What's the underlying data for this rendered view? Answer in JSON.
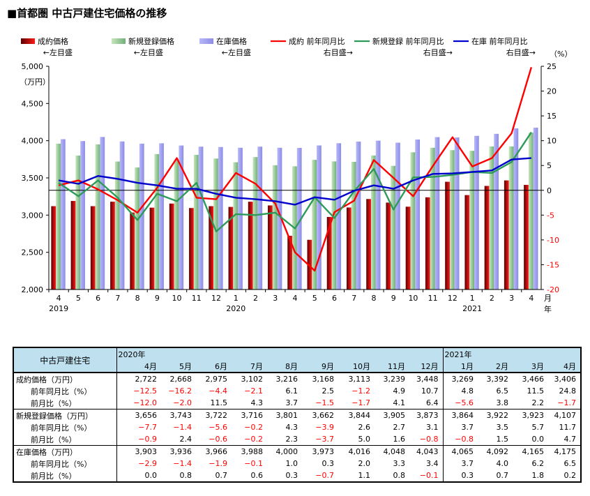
{
  "title": "■首都圏 中古戸建住宅価格の推移",
  "legend": [
    {
      "name": "成約価格",
      "sub": "←左目盛",
      "kind": "bar",
      "color": "#d40000"
    },
    {
      "name": "新規登録価格",
      "sub": "←左目盛",
      "kind": "bar",
      "color": "#9bc98e"
    },
    {
      "name": "在庫価格",
      "sub": "←左目盛",
      "kind": "bar",
      "color": "#aaaaf2"
    },
    {
      "name": "成約 前年同月比",
      "sub": "右目盛→",
      "kind": "line",
      "color": "#ff0000"
    },
    {
      "name": "新規登録 前年同月比",
      "sub": "右目盛→",
      "kind": "line",
      "color": "#2e9a5a"
    },
    {
      "name": "在庫 前年同月比",
      "sub": "右目盛→",
      "kind": "line",
      "color": "#0000cc"
    }
  ],
  "chart_data": {
    "type": "bar",
    "categories": [
      "4",
      "5",
      "6",
      "7",
      "8",
      "9",
      "10",
      "11",
      "12",
      "1",
      "2",
      "3",
      "4",
      "5",
      "6",
      "7",
      "8",
      "9",
      "10",
      "11",
      "12",
      "1",
      "2",
      "3",
      "4"
    ],
    "year_labels": [
      {
        "index": 0,
        "text": "2019"
      },
      {
        "index": 9,
        "text": "2020"
      },
      {
        "index": 21,
        "text": "2021"
      }
    ],
    "x_unit": [
      "月",
      "年"
    ],
    "left_axis": {
      "label": "（万円）",
      "min": 2000,
      "max": 5000,
      "ticks": [
        2000,
        2500,
        3000,
        3500,
        4000,
        4500,
        5000
      ],
      "tick_labels": [
        "2,000",
        "2,500",
        "3,000",
        "3,500",
        "4,000",
        "4,500",
        "5,000"
      ]
    },
    "right_axis": {
      "label": "（%）",
      "min": -20,
      "max": 25,
      "ticks": [
        -20,
        -15,
        -10,
        -5,
        0,
        5,
        10,
        15,
        20,
        25
      ],
      "tick_labels": [
        "-20",
        "-15",
        "-10",
        "-5",
        "0",
        "5",
        "10",
        "15",
        "20",
        "25"
      ]
    },
    "bar_series": [
      {
        "name": "成約価格",
        "color": "#d40000",
        "values": [
          3120,
          3190,
          3120,
          3180,
          3035,
          3100,
          3155,
          3095,
          3120,
          3110,
          3180,
          3130,
          2722,
          2668,
          2975,
          3102,
          3216,
          3168,
          3113,
          3239,
          3448,
          3269,
          3392,
          3466,
          3406
        ]
      },
      {
        "name": "新規登録価格",
        "color": "#9bc98e",
        "values": [
          3960,
          3800,
          3950,
          3720,
          3640,
          3820,
          3740,
          3810,
          3760,
          3710,
          3780,
          3670,
          3656,
          3743,
          3722,
          3716,
          3801,
          3662,
          3844,
          3905,
          3873,
          3864,
          3922,
          3923,
          4107
        ]
      },
      {
        "name": "在庫価格",
        "color": "#aaaaf2",
        "values": [
          4020,
          3995,
          4050,
          3990,
          3960,
          3965,
          3935,
          3920,
          3915,
          3905,
          3920,
          3905,
          3903,
          3936,
          3966,
          3988,
          4000,
          3973,
          4016,
          4048,
          4043,
          4065,
          4092,
          4165,
          4175
        ]
      }
    ],
    "line_series": [
      {
        "name": "成約 前年同月比",
        "color": "#ff0000",
        "values": [
          1.0,
          2.0,
          0.2,
          -2.0,
          -4.5,
          0.5,
          6.5,
          -1.5,
          -1.8,
          3.5,
          1.3,
          -2.7,
          -12.5,
          -16.2,
          -4.4,
          -2.1,
          6.1,
          2.5,
          -1.2,
          4.9,
          10.7,
          4.8,
          6.5,
          11.5,
          24.8
        ]
      },
      {
        "name": "新規登録 前年同月比",
        "color": "#2e9a5a",
        "values": [
          1.5,
          -1.2,
          2.0,
          -1.5,
          -6.0,
          -0.7,
          -2.2,
          1.5,
          -8.3,
          -4.8,
          -5.0,
          -4.5,
          -7.7,
          -1.4,
          -5.6,
          -0.2,
          4.3,
          -3.9,
          2.6,
          2.7,
          3.1,
          3.7,
          3.5,
          5.7,
          11.7
        ]
      },
      {
        "name": "在庫 前年同月比",
        "color": "#0000cc",
        "values": [
          2.0,
          1.3,
          2.9,
          2.3,
          1.5,
          1.0,
          0.3,
          0.3,
          -0.7,
          -1.5,
          -1.8,
          -2.2,
          -2.9,
          -1.4,
          -1.9,
          -0.1,
          1.0,
          0.3,
          2.0,
          3.3,
          3.4,
          3.7,
          4.0,
          6.2,
          6.5
        ]
      }
    ],
    "grid": false,
    "legend_position": "top"
  },
  "table": {
    "row_header": "中古戸建住宅",
    "years": [
      {
        "label": "2020年",
        "span": 9
      },
      {
        "label": "2021年",
        "span": 4
      }
    ],
    "months": [
      "4月",
      "5月",
      "6月",
      "7月",
      "8月",
      "9月",
      "10月",
      "11月",
      "12月",
      "1月",
      "2月",
      "3月",
      "4月"
    ],
    "groups": [
      {
        "rows": [
          {
            "label": "成約価格（万円）",
            "indent": false,
            "values": [
              "2,722",
              "2,668",
              "2,975",
              "3,102",
              "3,216",
              "3,168",
              "3,113",
              "3,239",
              "3,448",
              "3,269",
              "3,392",
              "3,466",
              "3,406"
            ]
          },
          {
            "label": "前年同月比（%）",
            "indent": true,
            "values": [
              "−12.5",
              "−16.2",
              "−4.4",
              "−2.1",
              "6.1",
              "2.5",
              "−1.2",
              "4.9",
              "10.7",
              "4.8",
              "6.5",
              "11.5",
              "24.8"
            ]
          },
          {
            "label": "前月比（%）",
            "indent": true,
            "values": [
              "−12.0",
              "−2.0",
              "11.5",
              "4.3",
              "3.7",
              "−1.5",
              "−1.7",
              "4.1",
              "6.4",
              "−5.6",
              "3.8",
              "2.2",
              "−1.7"
            ]
          }
        ]
      },
      {
        "rows": [
          {
            "label": "新規登録価格（万円）",
            "indent": false,
            "values": [
              "3,656",
              "3,743",
              "3,722",
              "3,716",
              "3,801",
              "3,662",
              "3,844",
              "3,905",
              "3,873",
              "3,864",
              "3,922",
              "3,923",
              "4,107"
            ]
          },
          {
            "label": "前年同月比（%）",
            "indent": true,
            "values": [
              "−7.7",
              "−1.4",
              "−5.6",
              "−0.2",
              "4.3",
              "−3.9",
              "2.6",
              "2.7",
              "3.1",
              "3.7",
              "3.5",
              "5.7",
              "11.7"
            ]
          },
          {
            "label": "前月比（%）",
            "indent": true,
            "values": [
              "−0.9",
              "2.4",
              "−0.6",
              "−0.2",
              "2.3",
              "−3.7",
              "5.0",
              "1.6",
              "−0.8",
              "−0.8",
              "1.5",
              "0.0",
              "4.7"
            ]
          }
        ]
      },
      {
        "rows": [
          {
            "label": "在庫価格（万円）",
            "indent": false,
            "values": [
              "3,903",
              "3,936",
              "3,966",
              "3,988",
              "4,000",
              "3,973",
              "4,016",
              "4,048",
              "4,043",
              "4,065",
              "4,092",
              "4,165",
              "4,175"
            ]
          },
          {
            "label": "前年同月比（%）",
            "indent": true,
            "values": [
              "−2.9",
              "−1.4",
              "−1.9",
              "−0.1",
              "1.0",
              "0.3",
              "2.0",
              "3.3",
              "3.4",
              "3.7",
              "4.0",
              "6.2",
              "6.5"
            ]
          },
          {
            "label": "前月比（%）",
            "indent": true,
            "values": [
              "0.0",
              "0.8",
              "0.7",
              "0.6",
              "0.3",
              "−0.7",
              "1.1",
              "0.8",
              "−0.1",
              "0.3",
              "0.7",
              "1.8",
              "0.2"
            ]
          }
        ]
      }
    ]
  }
}
